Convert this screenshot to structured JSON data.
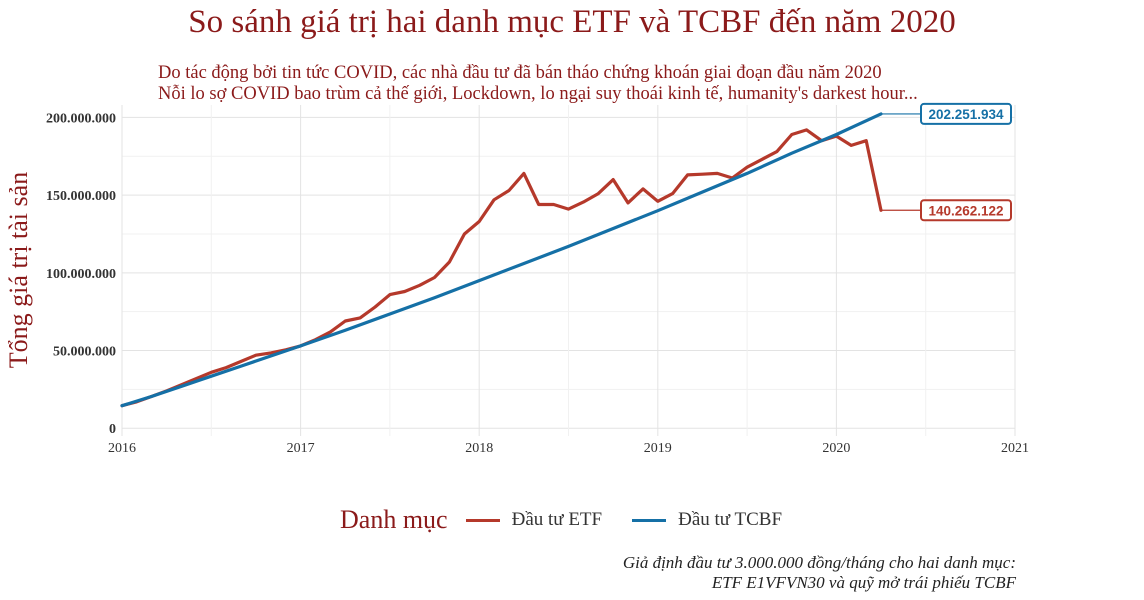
{
  "chart_data": {
    "type": "line",
    "title": "So sánh giá trị hai danh mục ETF và TCBF đến năm 2020",
    "subtitle_lines": [
      "Do tác động bởi tin tức COVID, các nhà đầu tư đã bán tháo chứng khoán giai đoạn đầu năm 2020",
      "Nỗi lo sợ COVID bao trùm cả thế giới, Lockdown, lo ngại suy thoái kinh tế, humanity's darkest hour..."
    ],
    "ylabel": "Tổng giá trị tài sản",
    "xlabel": "",
    "xlim": [
      2016,
      2021
    ],
    "ylim": [
      -5000000,
      208000000
    ],
    "x_ticks": [
      2016,
      2017,
      2018,
      2019,
      2020,
      2021
    ],
    "x_tick_labels": [
      "2016",
      "2017",
      "2018",
      "2019",
      "2020",
      "2021"
    ],
    "y_ticks": [
      0,
      50000000,
      100000000,
      150000000,
      200000000
    ],
    "y_tick_labels": [
      "0",
      "50.000.000",
      "100.000.000",
      "150.000.000",
      "200.000.000"
    ],
    "grid": true,
    "legend_title": "Danh mục",
    "legend_position": "bottom",
    "series": [
      {
        "name": "Đầu tư ETF",
        "color": "#b5392b",
        "end_label": "140.262.122",
        "points": [
          [
            2016.0,
            14500000
          ],
          [
            2016.083,
            17000000
          ],
          [
            2016.167,
            20500000
          ],
          [
            2016.25,
            24000000
          ],
          [
            2016.333,
            28000000
          ],
          [
            2016.417,
            32000000
          ],
          [
            2016.5,
            36000000
          ],
          [
            2016.583,
            39000000
          ],
          [
            2016.667,
            43000000
          ],
          [
            2016.75,
            47000000
          ],
          [
            2016.833,
            48500000
          ],
          [
            2016.917,
            50500000
          ],
          [
            2017.0,
            53000000
          ],
          [
            2017.083,
            57000000
          ],
          [
            2017.167,
            62000000
          ],
          [
            2017.25,
            69000000
          ],
          [
            2017.333,
            71000000
          ],
          [
            2017.417,
            78000000
          ],
          [
            2017.5,
            86000000
          ],
          [
            2017.583,
            88000000
          ],
          [
            2017.667,
            92000000
          ],
          [
            2017.75,
            97000000
          ],
          [
            2017.833,
            107000000
          ],
          [
            2017.917,
            125000000
          ],
          [
            2018.0,
            133000000
          ],
          [
            2018.083,
            147000000
          ],
          [
            2018.167,
            153000000
          ],
          [
            2018.25,
            164000000
          ],
          [
            2018.333,
            144000000
          ],
          [
            2018.417,
            144000000
          ],
          [
            2018.5,
            141000000
          ],
          [
            2018.583,
            145500000
          ],
          [
            2018.667,
            151000000
          ],
          [
            2018.75,
            160000000
          ],
          [
            2018.833,
            145000000
          ],
          [
            2018.917,
            154000000
          ],
          [
            2019.0,
            146000000
          ],
          [
            2019.083,
            151000000
          ],
          [
            2019.167,
            163000000
          ],
          [
            2019.25,
            163500000
          ],
          [
            2019.333,
            164000000
          ],
          [
            2019.417,
            161000000
          ],
          [
            2019.5,
            168000000
          ],
          [
            2019.583,
            173000000
          ],
          [
            2019.667,
            178000000
          ],
          [
            2019.75,
            189000000
          ],
          [
            2019.833,
            192000000
          ],
          [
            2019.917,
            185000000
          ],
          [
            2020.0,
            188000000
          ],
          [
            2020.083,
            182000000
          ],
          [
            2020.167,
            185000000
          ],
          [
            2020.25,
            140262122
          ]
        ]
      },
      {
        "name": "Đầu tư TCBF",
        "color": "#1570a6",
        "end_label": "202.251.934",
        "points": [
          [
            2016.0,
            14500000
          ],
          [
            2016.167,
            20500000
          ],
          [
            2016.333,
            27000000
          ],
          [
            2016.5,
            33500000
          ],
          [
            2016.667,
            40000000
          ],
          [
            2016.833,
            46500000
          ],
          [
            2017.0,
            53000000
          ],
          [
            2017.25,
            63000000
          ],
          [
            2017.5,
            73500000
          ],
          [
            2017.75,
            84000000
          ],
          [
            2018.0,
            95000000
          ],
          [
            2018.25,
            106000000
          ],
          [
            2018.5,
            117000000
          ],
          [
            2018.75,
            128500000
          ],
          [
            2019.0,
            140000000
          ],
          [
            2019.25,
            152000000
          ],
          [
            2019.5,
            164000000
          ],
          [
            2019.75,
            177000000
          ],
          [
            2020.0,
            189000000
          ],
          [
            2020.25,
            202251934
          ]
        ]
      }
    ]
  },
  "caption_lines": [
    "Giả định đầu tư 3.000.000 đồng/tháng cho hai danh mục:",
    "ETF E1VFVN30 và quỹ mở trái phiếu TCBF"
  ]
}
